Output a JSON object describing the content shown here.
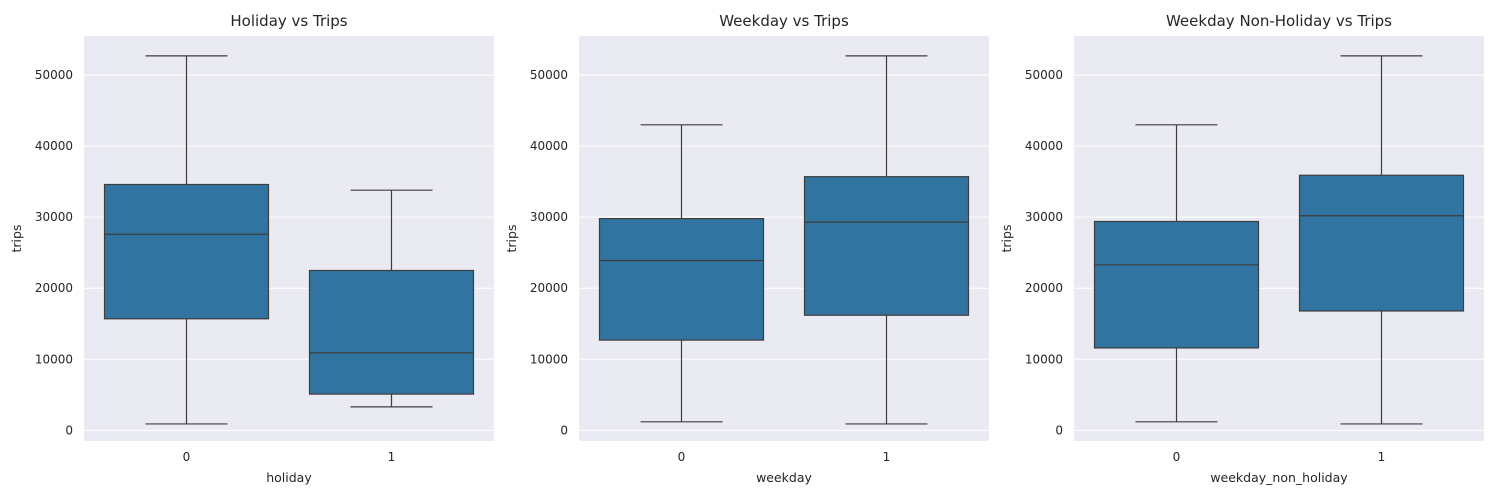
{
  "chart_data": [
    {
      "type": "box",
      "title": "Holiday vs Trips",
      "xlabel": "holiday",
      "ylabel": "trips",
      "categories": [
        "0",
        "1"
      ],
      "ylim": [
        -1500,
        55500
      ],
      "yticks": [
        0,
        10000,
        20000,
        30000,
        40000,
        50000
      ],
      "grid": true,
      "color": "#3274a1",
      "boxes": [
        {
          "category": "0",
          "whisker_low": 900,
          "q1": 15700,
          "median": 27600,
          "q3": 34600,
          "whisker_high": 52700
        },
        {
          "category": "1",
          "whisker_low": 3300,
          "q1": 5100,
          "median": 10900,
          "q3": 22500,
          "whisker_high": 33800
        }
      ]
    },
    {
      "type": "box",
      "title": "Weekday vs Trips",
      "xlabel": "weekday",
      "ylabel": "trips",
      "categories": [
        "0",
        "1"
      ],
      "ylim": [
        -1500,
        55500
      ],
      "yticks": [
        0,
        10000,
        20000,
        30000,
        40000,
        50000
      ],
      "grid": true,
      "color": "#3274a1",
      "boxes": [
        {
          "category": "0",
          "whisker_low": 1200,
          "q1": 12700,
          "median": 23900,
          "q3": 29800,
          "whisker_high": 43000
        },
        {
          "category": "1",
          "whisker_low": 900,
          "q1": 16200,
          "median": 29300,
          "q3": 35700,
          "whisker_high": 52700
        }
      ]
    },
    {
      "type": "box",
      "title": "Weekday Non-Holiday vs Trips",
      "xlabel": "weekday_non_holiday",
      "ylabel": "trips",
      "categories": [
        "0",
        "1"
      ],
      "ylim": [
        -1500,
        55500
      ],
      "yticks": [
        0,
        10000,
        20000,
        30000,
        40000,
        50000
      ],
      "grid": true,
      "color": "#3274a1",
      "boxes": [
        {
          "category": "0",
          "whisker_low": 1200,
          "q1": 11600,
          "median": 23300,
          "q3": 29400,
          "whisker_high": 43000
        },
        {
          "category": "1",
          "whisker_low": 900,
          "q1": 16800,
          "median": 30200,
          "q3": 35900,
          "whisker_high": 52700
        }
      ]
    }
  ]
}
